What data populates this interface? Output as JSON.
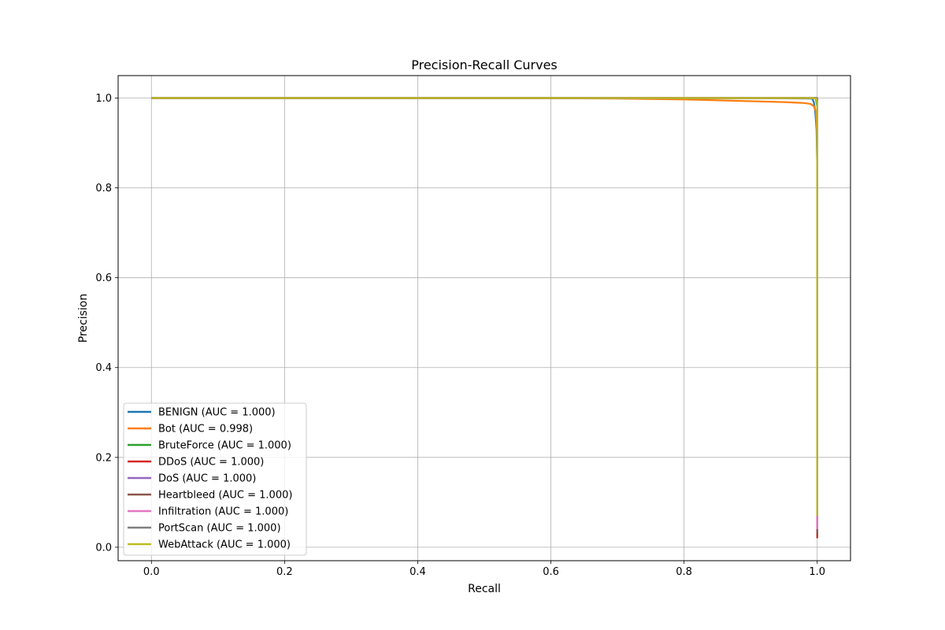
{
  "chart_data": {
    "type": "line",
    "title": "Precision-Recall Curves",
    "xlabel": "Recall",
    "ylabel": "Precision",
    "xlim": [
      -0.05,
      1.05
    ],
    "ylim": [
      -0.03,
      1.05
    ],
    "xticks": [
      "0.0",
      "0.2",
      "0.4",
      "0.6",
      "0.8",
      "1.0"
    ],
    "yticks": [
      "0.0",
      "0.2",
      "0.4",
      "0.6",
      "0.8",
      "1.0"
    ],
    "grid": true,
    "legend_position": "lower-left",
    "series": [
      {
        "name": "BENIGN (AUC = 1.000)",
        "color": "#1f77b4",
        "x": [
          0.0,
          0.5,
          0.9,
          0.99,
          0.993,
          0.995,
          0.997,
          0.999,
          1.0,
          1.0
        ],
        "y": [
          1.0,
          1.0,
          1.0,
          0.999,
          0.998,
          0.99,
          0.97,
          0.93,
          0.85,
          0.03
        ]
      },
      {
        "name": "Bot (AUC = 0.998)",
        "color": "#ff7f0e",
        "x": [
          0.0,
          0.5,
          0.7,
          0.8,
          0.85,
          0.9,
          0.95,
          0.98,
          0.99,
          0.995,
          0.998,
          0.9995,
          1.0,
          1.0
        ],
        "y": [
          1.0,
          1.0,
          0.999,
          0.997,
          0.995,
          0.993,
          0.991,
          0.989,
          0.987,
          0.982,
          0.97,
          0.93,
          0.83,
          0.07
        ]
      },
      {
        "name": "BruteForce (AUC = 1.000)",
        "color": "#2ca02c",
        "x": [
          0.0,
          0.5,
          0.99,
          0.998,
          1.0,
          1.0
        ],
        "y": [
          1.0,
          1.0,
          1.0,
          0.999,
          0.98,
          0.02
        ]
      },
      {
        "name": "DDoS (AUC = 1.000)",
        "color": "#d62728",
        "x": [
          0.0,
          0.5,
          0.999,
          1.0,
          1.0
        ],
        "y": [
          1.0,
          1.0,
          1.0,
          0.999,
          0.02
        ]
      },
      {
        "name": "DoS (AUC = 1.000)",
        "color": "#9467bd",
        "x": [
          0.0,
          0.5,
          0.999,
          1.0,
          1.0
        ],
        "y": [
          1.0,
          1.0,
          1.0,
          0.999,
          0.03
        ]
      },
      {
        "name": "Heartbleed (AUC = 1.000)",
        "color": "#8c564b",
        "x": [
          0.0,
          0.5,
          0.999,
          1.0,
          1.0
        ],
        "y": [
          1.0,
          1.0,
          1.0,
          1.0,
          0.03
        ]
      },
      {
        "name": "Infiltration (AUC = 1.000)",
        "color": "#e377c2",
        "x": [
          0.0,
          0.5,
          0.999,
          1.0,
          1.0
        ],
        "y": [
          1.0,
          1.0,
          1.0,
          1.0,
          0.04
        ]
      },
      {
        "name": "PortScan (AUC = 1.000)",
        "color": "#7f7f7f",
        "x": [
          0.0,
          0.5,
          0.999,
          1.0,
          1.0
        ],
        "y": [
          1.0,
          1.0,
          1.0,
          0.999,
          0.07
        ]
      },
      {
        "name": "WebAttack (AUC = 1.000)",
        "color": "#bcbd22",
        "x": [
          0.0,
          0.5,
          0.995,
          0.999,
          1.0,
          1.0
        ],
        "y": [
          1.0,
          1.0,
          1.0,
          0.998,
          0.99,
          0.07
        ]
      }
    ]
  }
}
